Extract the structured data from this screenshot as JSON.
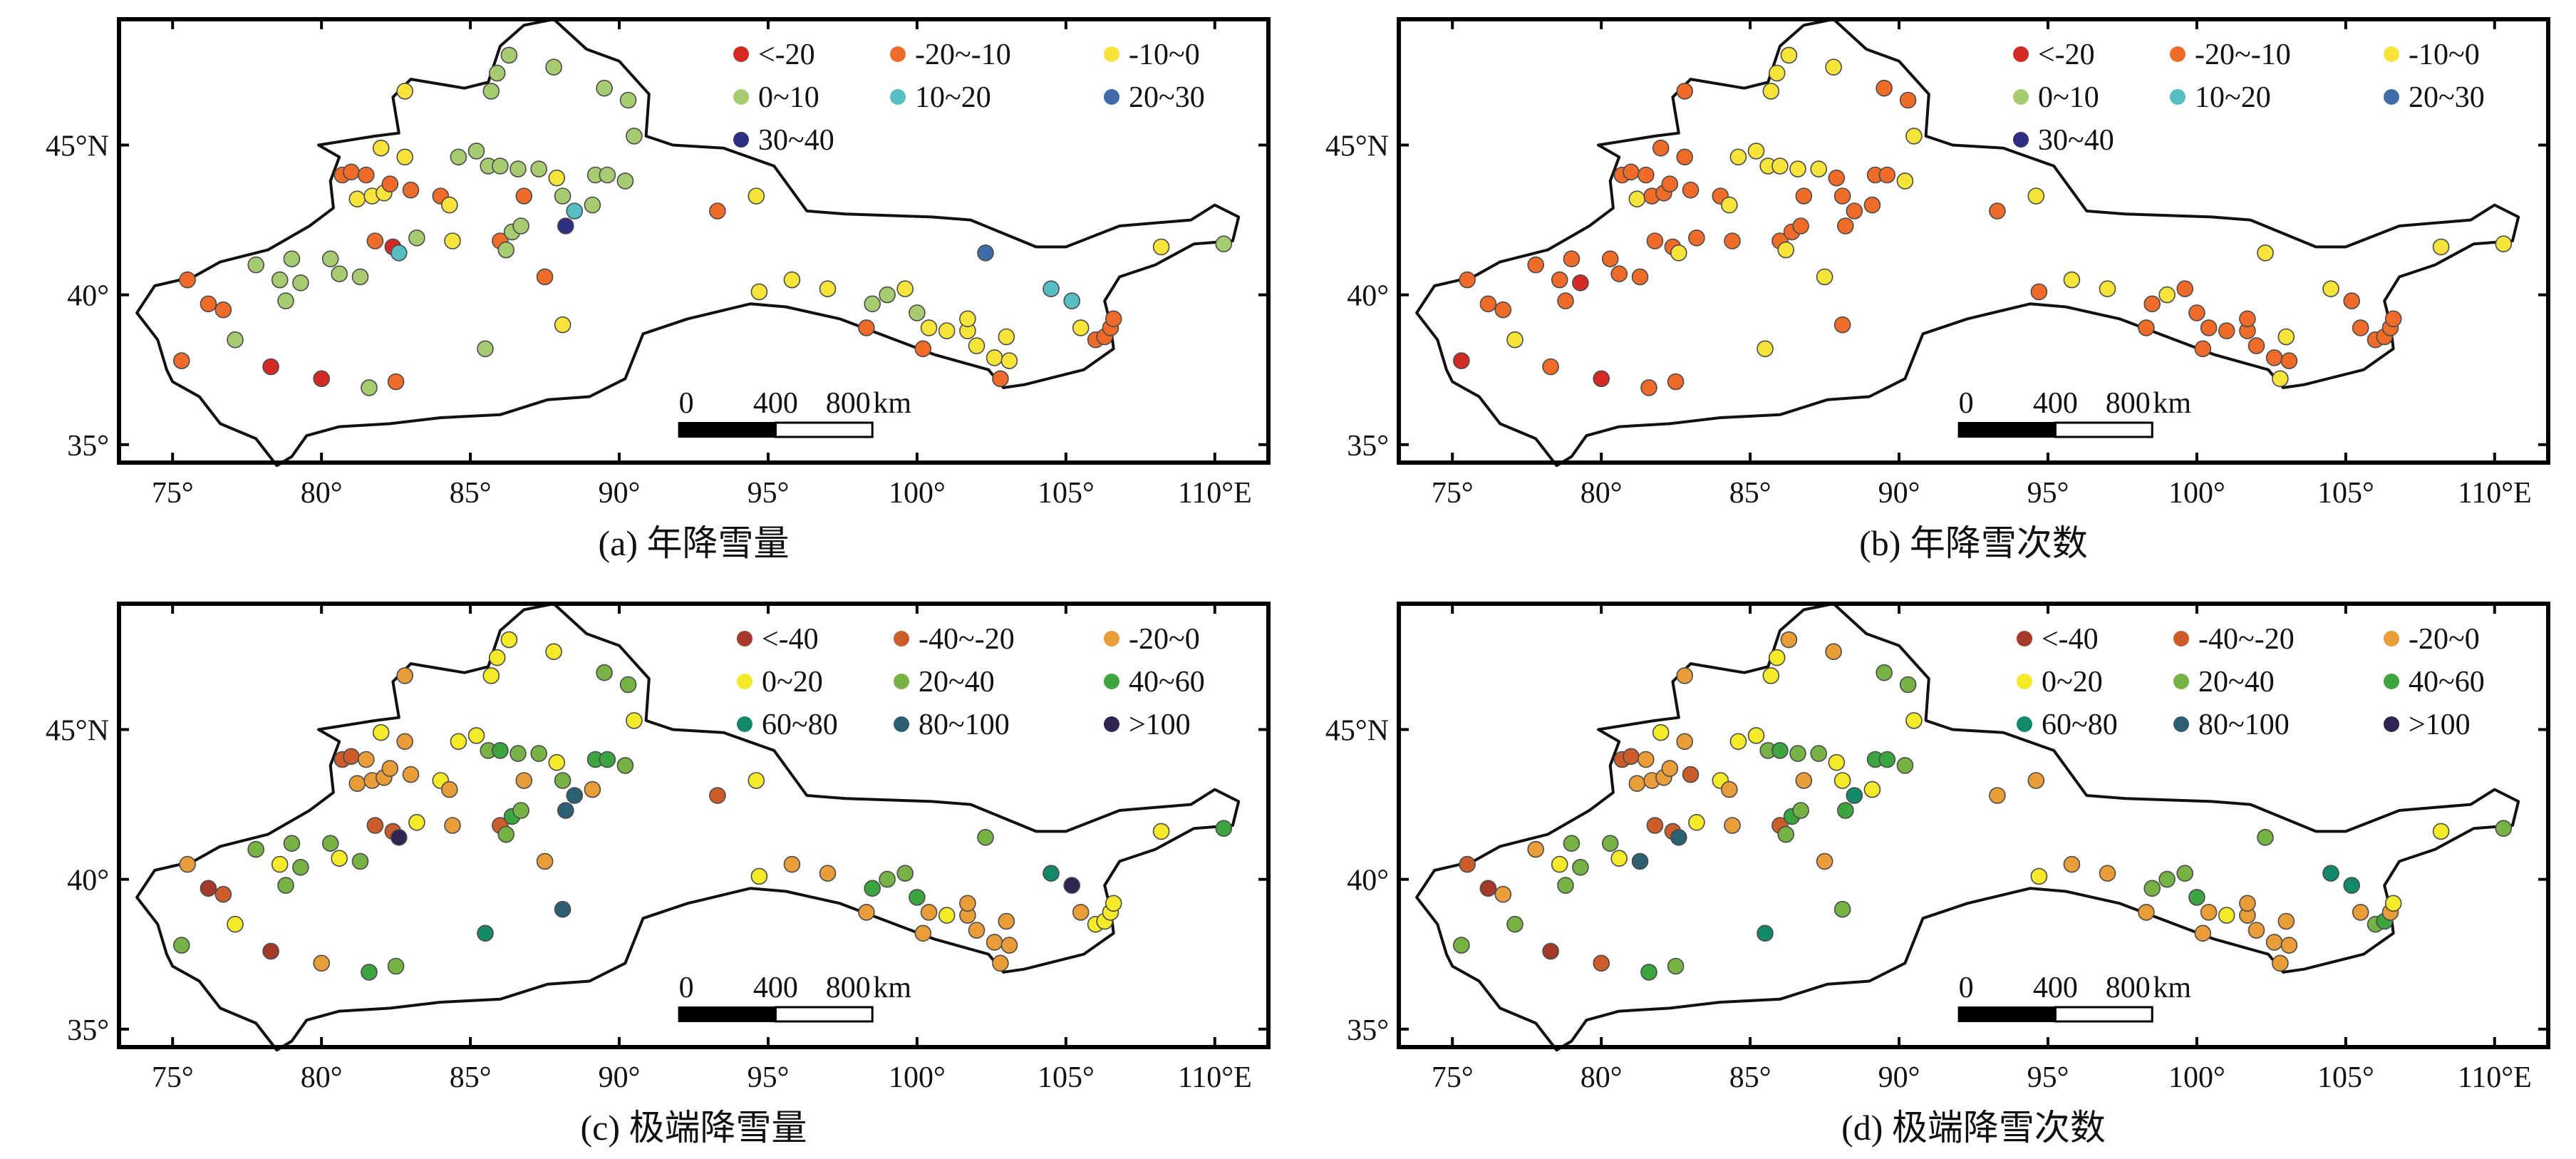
{
  "colors": {
    "legend_a": [
      "#d42a24",
      "#ef6b29",
      "#f6e43a",
      "#a7cb70",
      "#55bec2",
      "#3f6ba8",
      "#2e2f82"
    ],
    "legend_c": [
      "#a53a2a",
      "#cc5d2b",
      "#e99d39",
      "#f5ea2a",
      "#77b244",
      "#3da53f",
      "#128a6a",
      "#2c5f72",
      "#2f2550"
    ]
  },
  "scale_bar": {
    "ticks": [
      "0",
      "400",
      "800"
    ],
    "unit": "km"
  },
  "panels": [
    {
      "caption": "(a) 年降雪量",
      "legend": [
        "<-20",
        "-20~-10",
        "-10~0",
        "0~10",
        "10~20",
        "20~30",
        "30~40"
      ],
      "x_ticks": [
        "75°",
        "80°",
        "85°",
        "90°",
        "95°",
        "100°",
        "105°",
        "110°E"
      ],
      "y_ticks": [
        "45°N",
        "40°",
        "35°"
      ]
    },
    {
      "caption": "(b) 年降雪次数",
      "legend": [
        "<-20",
        "-20~-10",
        "-10~0",
        "0~10",
        "10~20",
        "20~30",
        "30~40"
      ],
      "x_ticks": [
        "75°",
        "80°",
        "85°",
        "90°",
        "95°",
        "100°",
        "105°",
        "110°E"
      ],
      "y_ticks": [
        "45°N",
        "40°",
        "35°"
      ]
    },
    {
      "caption": "(c) 极端降雪量",
      "legend": [
        "<-40",
        "-40~-20",
        "-20~0",
        "0~20",
        "20~40",
        "40~60",
        "60~80",
        "80~100",
        ">100"
      ],
      "x_ticks": [
        "75°",
        "80°",
        "85°",
        "90°",
        "95°",
        "100°",
        "105°",
        "110°E"
      ],
      "y_ticks": [
        "45°N",
        "40°",
        "35°"
      ]
    },
    {
      "caption": "(d) 极端降雪次数",
      "legend": [
        "<-40",
        "-40~-20",
        "-20~0",
        "0~20",
        "20~40",
        "40~60",
        "60~80",
        "80~100",
        ">100"
      ],
      "x_ticks": [
        "75°",
        "80°",
        "85°",
        "90°",
        "95°",
        "100°",
        "105°",
        "110°E"
      ],
      "y_ticks": [
        "45°N",
        "40°",
        "35°"
      ]
    }
  ],
  "stations": [
    {
      "lon": 75.3,
      "lat": 37.8,
      "a": 1,
      "b": 0,
      "c": 4,
      "d": 4
    },
    {
      "lon": 75.5,
      "lat": 40.5,
      "a": 1,
      "b": 1,
      "c": 2,
      "d": 1
    },
    {
      "lon": 76.2,
      "lat": 39.7,
      "a": 1,
      "b": 1,
      "c": 0,
      "d": 0
    },
    {
      "lon": 76.7,
      "lat": 39.5,
      "a": 1,
      "b": 1,
      "c": 1,
      "d": 2
    },
    {
      "lon": 77.1,
      "lat": 38.5,
      "a": 3,
      "b": 2,
      "c": 3,
      "d": 4
    },
    {
      "lon": 77.8,
      "lat": 41.0,
      "a": 3,
      "b": 1,
      "c": 4,
      "d": 2
    },
    {
      "lon": 78.3,
      "lat": 37.6,
      "a": 0,
      "b": 1,
      "c": 0,
      "d": 0
    },
    {
      "lon": 78.6,
      "lat": 40.5,
      "a": 3,
      "b": 1,
      "c": 3,
      "d": 3
    },
    {
      "lon": 78.8,
      "lat": 39.8,
      "a": 3,
      "b": 1,
      "c": 4,
      "d": 4
    },
    {
      "lon": 79.0,
      "lat": 41.2,
      "a": 3,
      "b": 1,
      "c": 4,
      "d": 4
    },
    {
      "lon": 79.3,
      "lat": 40.4,
      "a": 3,
      "b": 0,
      "c": 4,
      "d": 4
    },
    {
      "lon": 80.0,
      "lat": 37.2,
      "a": 0,
      "b": 0,
      "c": 2,
      "d": 1
    },
    {
      "lon": 80.3,
      "lat": 41.2,
      "a": 3,
      "b": 1,
      "c": 4,
      "d": 4
    },
    {
      "lon": 80.6,
      "lat": 40.7,
      "a": 3,
      "b": 1,
      "c": 3,
      "d": 3
    },
    {
      "lon": 80.7,
      "lat": 44.0,
      "a": 1,
      "b": 1,
      "c": 1,
      "d": 1
    },
    {
      "lon": 81.0,
      "lat": 44.1,
      "a": 1,
      "b": 1,
      "c": 1,
      "d": 1
    },
    {
      "lon": 81.2,
      "lat": 43.2,
      "a": 2,
      "b": 2,
      "c": 2,
      "d": 2
    },
    {
      "lon": 81.3,
      "lat": 40.6,
      "a": 3,
      "b": 1,
      "c": 4,
      "d": 7
    },
    {
      "lon": 81.5,
      "lat": 44.0,
      "a": 1,
      "b": 1,
      "c": 2,
      "d": 2
    },
    {
      "lon": 81.6,
      "lat": 36.9,
      "a": 3,
      "b": 1,
      "c": 5,
      "d": 5
    },
    {
      "lon": 81.7,
      "lat": 43.3,
      "a": 2,
      "b": 1,
      "c": 2,
      "d": 2
    },
    {
      "lon": 81.8,
      "lat": 41.8,
      "a": 1,
      "b": 1,
      "c": 1,
      "d": 1
    },
    {
      "lon": 82.0,
      "lat": 44.9,
      "a": 2,
      "b": 1,
      "c": 3,
      "d": 3
    },
    {
      "lon": 82.1,
      "lat": 43.4,
      "a": 2,
      "b": 1,
      "c": 2,
      "d": 2
    },
    {
      "lon": 82.3,
      "lat": 43.7,
      "a": 1,
      "b": 1,
      "c": 2,
      "d": 2
    },
    {
      "lon": 82.4,
      "lat": 41.6,
      "a": 0,
      "b": 1,
      "c": 1,
      "d": 1
    },
    {
      "lon": 82.5,
      "lat": 37.1,
      "a": 1,
      "b": 1,
      "c": 4,
      "d": 4
    },
    {
      "lon": 82.6,
      "lat": 41.4,
      "a": 4,
      "b": 2,
      "c": 8,
      "d": 7
    },
    {
      "lon": 82.8,
      "lat": 46.8,
      "a": 2,
      "b": 1,
      "c": 2,
      "d": 2
    },
    {
      "lon": 82.8,
      "lat": 44.6,
      "a": 2,
      "b": 1,
      "c": 2,
      "d": 2
    },
    {
      "lon": 83.0,
      "lat": 43.5,
      "a": 1,
      "b": 1,
      "c": 2,
      "d": 1
    },
    {
      "lon": 83.2,
      "lat": 41.9,
      "a": 3,
      "b": 1,
      "c": 3,
      "d": 3
    },
    {
      "lon": 84.0,
      "lat": 43.3,
      "a": 1,
      "b": 1,
      "c": 3,
      "d": 3
    },
    {
      "lon": 84.3,
      "lat": 43.0,
      "a": 2,
      "b": 2,
      "c": 2,
      "d": 2
    },
    {
      "lon": 84.4,
      "lat": 41.8,
      "a": 2,
      "b": 1,
      "c": 2,
      "d": 2
    },
    {
      "lon": 84.6,
      "lat": 44.6,
      "a": 3,
      "b": 2,
      "c": 3,
      "d": 3
    },
    {
      "lon": 85.2,
      "lat": 44.8,
      "a": 3,
      "b": 2,
      "c": 3,
      "d": 3
    },
    {
      "lon": 85.5,
      "lat": 38.2,
      "a": 3,
      "b": 2,
      "c": 6,
      "d": 6
    },
    {
      "lon": 85.6,
      "lat": 44.3,
      "a": 3,
      "b": 2,
      "c": 4,
      "d": 4
    },
    {
      "lon": 85.7,
      "lat": 46.8,
      "a": 3,
      "b": 2,
      "c": 3,
      "d": 3
    },
    {
      "lon": 85.9,
      "lat": 47.4,
      "a": 3,
      "b": 2,
      "c": 3,
      "d": 3
    },
    {
      "lon": 86.0,
      "lat": 44.3,
      "a": 3,
      "b": 2,
      "c": 5,
      "d": 5
    },
    {
      "lon": 86.0,
      "lat": 41.8,
      "a": 1,
      "b": 1,
      "c": 1,
      "d": 1
    },
    {
      "lon": 86.2,
      "lat": 41.5,
      "a": 3,
      "b": 2,
      "c": 4,
      "d": 4
    },
    {
      "lon": 86.3,
      "lat": 48.0,
      "a": 3,
      "b": 2,
      "c": 3,
      "d": 2
    },
    {
      "lon": 86.4,
      "lat": 42.1,
      "a": 3,
      "b": 1,
      "c": 5,
      "d": 5
    },
    {
      "lon": 86.6,
      "lat": 44.2,
      "a": 3,
      "b": 2,
      "c": 4,
      "d": 4
    },
    {
      "lon": 86.7,
      "lat": 42.3,
      "a": 3,
      "b": 1,
      "c": 4,
      "d": 4
    },
    {
      "lon": 86.8,
      "lat": 43.3,
      "a": 1,
      "b": 1,
      "c": 2,
      "d": 2
    },
    {
      "lon": 87.3,
      "lat": 44.2,
      "a": 3,
      "b": 2,
      "c": 4,
      "d": 4
    },
    {
      "lon": 87.5,
      "lat": 40.6,
      "a": 1,
      "b": 2,
      "c": 2,
      "d": 2
    },
    {
      "lon": 87.8,
      "lat": 47.6,
      "a": 3,
      "b": 2,
      "c": 3,
      "d": 2
    },
    {
      "lon": 87.9,
      "lat": 43.9,
      "a": 2,
      "b": 1,
      "c": 3,
      "d": 3
    },
    {
      "lon": 88.1,
      "lat": 39.0,
      "a": 2,
      "b": 1,
      "c": 7,
      "d": 4
    },
    {
      "lon": 88.1,
      "lat": 43.3,
      "a": 3,
      "b": 1,
      "c": 4,
      "d": 3
    },
    {
      "lon": 88.2,
      "lat": 42.3,
      "a": 6,
      "b": 1,
      "c": 7,
      "d": 5
    },
    {
      "lon": 88.5,
      "lat": 42.8,
      "a": 4,
      "b": 1,
      "c": 7,
      "d": 6
    },
    {
      "lon": 89.1,
      "lat": 43.0,
      "a": 3,
      "b": 1,
      "c": 2,
      "d": 3
    },
    {
      "lon": 89.2,
      "lat": 44.0,
      "a": 3,
      "b": 1,
      "c": 5,
      "d": 5
    },
    {
      "lon": 89.5,
      "lat": 46.9,
      "a": 3,
      "b": 1,
      "c": 4,
      "d": 4
    },
    {
      "lon": 89.6,
      "lat": 44.0,
      "a": 3,
      "b": 1,
      "c": 5,
      "d": 5
    },
    {
      "lon": 90.2,
      "lat": 43.8,
      "a": 3,
      "b": 2,
      "c": 4,
      "d": 4
    },
    {
      "lon": 90.3,
      "lat": 46.5,
      "a": 3,
      "b": 1,
      "c": 4,
      "d": 4
    },
    {
      "lon": 90.5,
      "lat": 45.3,
      "a": 3,
      "b": 2,
      "c": 3,
      "d": 3
    },
    {
      "lon": 93.3,
      "lat": 42.8,
      "a": 1,
      "b": 1,
      "c": 1,
      "d": 2
    },
    {
      "lon": 94.6,
      "lat": 43.3,
      "a": 2,
      "b": 2,
      "c": 3,
      "d": 2
    },
    {
      "lon": 94.7,
      "lat": 40.1,
      "a": 2,
      "b": 1,
      "c": 3,
      "d": 3
    },
    {
      "lon": 95.8,
      "lat": 40.5,
      "a": 2,
      "b": 2,
      "c": 2,
      "d": 2
    },
    {
      "lon": 97.0,
      "lat": 40.2,
      "a": 2,
      "b": 2,
      "c": 2,
      "d": 2
    },
    {
      "lon": 98.3,
      "lat": 38.9,
      "a": 1,
      "b": 1,
      "c": 2,
      "d": 2
    },
    {
      "lon": 98.5,
      "lat": 39.7,
      "a": 3,
      "b": 1,
      "c": 5,
      "d": 4
    },
    {
      "lon": 99.0,
      "lat": 40.0,
      "a": 3,
      "b": 2,
      "c": 4,
      "d": 4
    },
    {
      "lon": 99.6,
      "lat": 40.2,
      "a": 2,
      "b": 1,
      "c": 4,
      "d": 4
    },
    {
      "lon": 100.0,
      "lat": 39.4,
      "a": 3,
      "b": 1,
      "c": 5,
      "d": 5
    },
    {
      "lon": 100.2,
      "lat": 38.2,
      "a": 1,
      "b": 1,
      "c": 2,
      "d": 2
    },
    {
      "lon": 100.4,
      "lat": 38.9,
      "a": 2,
      "b": 1,
      "c": 2,
      "d": 2
    },
    {
      "lon": 101.0,
      "lat": 38.8,
      "a": 2,
      "b": 1,
      "c": 3,
      "d": 3
    },
    {
      "lon": 101.7,
      "lat": 38.8,
      "a": 2,
      "b": 1,
      "c": 2,
      "d": 2
    },
    {
      "lon": 101.7,
      "lat": 39.2,
      "a": 2,
      "b": 1,
      "c": 2,
      "d": 2
    },
    {
      "lon": 102.0,
      "lat": 38.3,
      "a": 2,
      "b": 1,
      "c": 2,
      "d": 2
    },
    {
      "lon": 102.3,
      "lat": 41.4,
      "a": 5,
      "b": 2,
      "c": 4,
      "d": 4
    },
    {
      "lon": 102.6,
      "lat": 37.9,
      "a": 2,
      "b": 1,
      "c": 2,
      "d": 2
    },
    {
      "lon": 102.8,
      "lat": 37.2,
      "a": 1,
      "b": 2,
      "c": 2,
      "d": 2
    },
    {
      "lon": 103.0,
      "lat": 38.6,
      "a": 2,
      "b": 2,
      "c": 2,
      "d": 2
    },
    {
      "lon": 103.1,
      "lat": 37.8,
      "a": 2,
      "b": 1,
      "c": 2,
      "d": 2
    },
    {
      "lon": 104.5,
      "lat": 40.2,
      "a": 4,
      "b": 2,
      "c": 6,
      "d": 6
    },
    {
      "lon": 105.2,
      "lat": 39.8,
      "a": 4,
      "b": 1,
      "c": 8,
      "d": 6
    },
    {
      "lon": 105.5,
      "lat": 38.9,
      "a": 2,
      "b": 1,
      "c": 2,
      "d": 2
    },
    {
      "lon": 106.0,
      "lat": 38.5,
      "a": 1,
      "b": 1,
      "c": 3,
      "d": 4
    },
    {
      "lon": 106.3,
      "lat": 38.6,
      "a": 1,
      "b": 1,
      "c": 3,
      "d": 5
    },
    {
      "lon": 106.5,
      "lat": 38.9,
      "a": 1,
      "b": 1,
      "c": 3,
      "d": 2
    },
    {
      "lon": 106.6,
      "lat": 39.2,
      "a": 1,
      "b": 1,
      "c": 3,
      "d": 3
    },
    {
      "lon": 108.2,
      "lat": 41.6,
      "a": 2,
      "b": 2,
      "c": 3,
      "d": 3
    },
    {
      "lon": 110.3,
      "lat": 41.7,
      "a": 3,
      "b": 2,
      "c": 5,
      "d": 4
    }
  ]
}
